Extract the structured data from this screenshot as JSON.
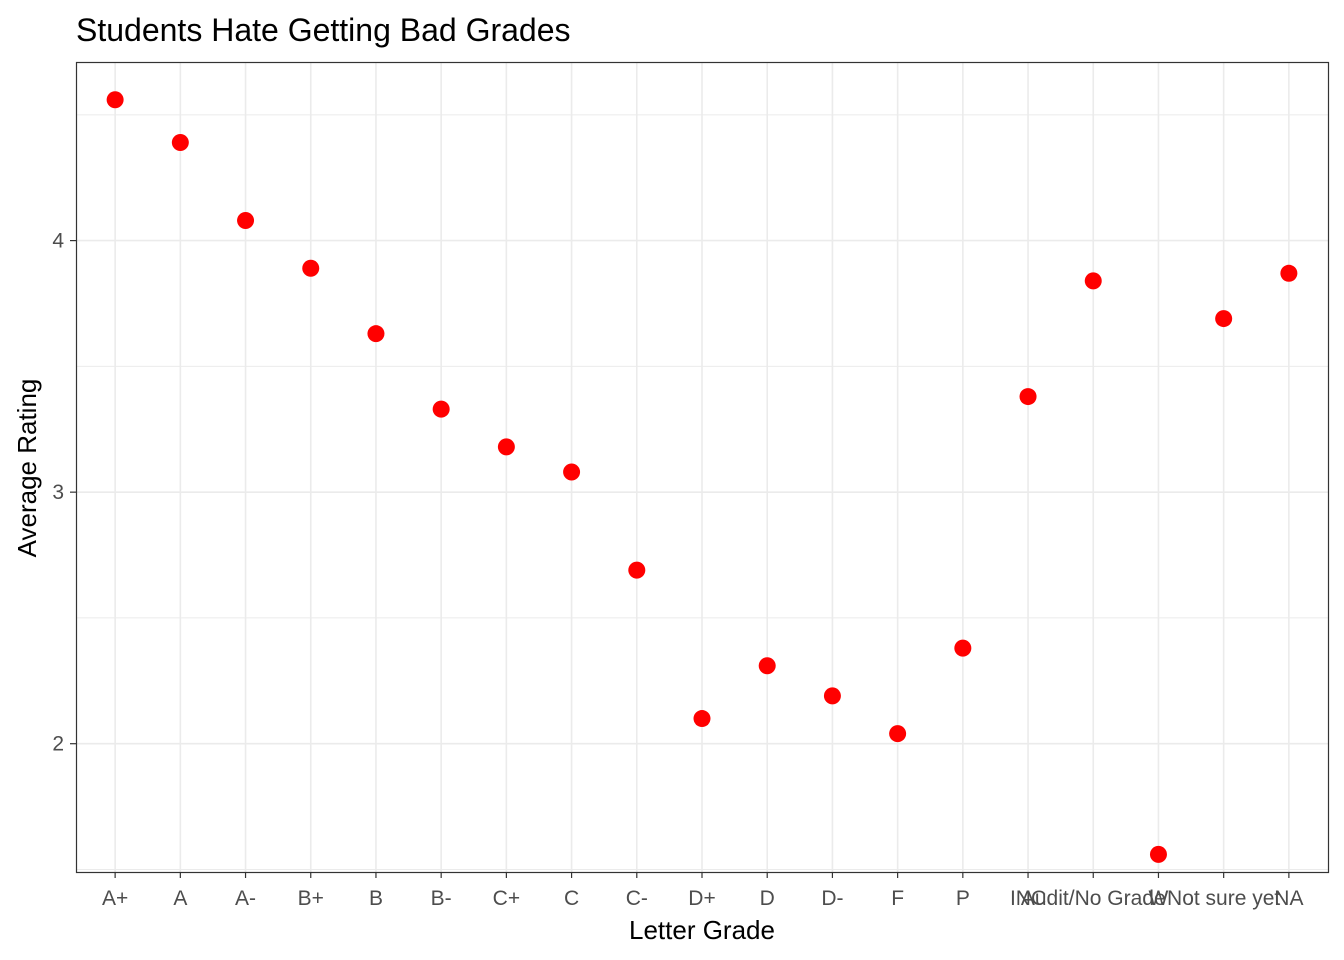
{
  "chart_data": {
    "type": "scatter",
    "title": "Students Hate Getting Bad Grades",
    "xlabel": "Letter Grade",
    "ylabel": "Average Rating",
    "categories": [
      "A+",
      "A",
      "A-",
      "B+",
      "B",
      "B-",
      "C+",
      "C",
      "C-",
      "D+",
      "D",
      "D-",
      "F",
      "P",
      "INC",
      "Audit/No Grade",
      "W",
      "Not sure yet",
      "NA"
    ],
    "values": [
      4.56,
      4.39,
      4.08,
      3.89,
      3.63,
      3.33,
      3.18,
      3.08,
      2.69,
      2.1,
      2.31,
      2.19,
      2.04,
      2.38,
      3.38,
      3.84,
      1.56,
      3.69,
      3.87
    ],
    "ylim": [
      1.49,
      4.71
    ],
    "yticks": [
      2,
      3,
      4
    ],
    "grid": true,
    "point_color": "#ff0000",
    "panel_border_color": "#333333",
    "grid_color": "#ebebeb"
  }
}
